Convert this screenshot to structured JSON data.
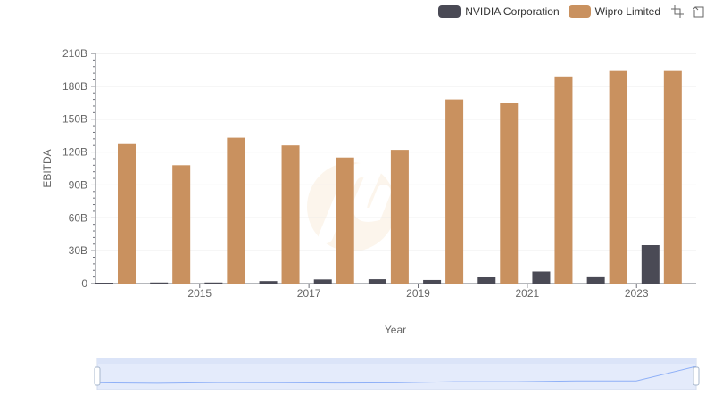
{
  "chart_data": {
    "type": "bar",
    "xlabel": "Year",
    "ylabel": "EBITDA",
    "categories": [
      "2014",
      "2015",
      "2016",
      "2017",
      "2018",
      "2019",
      "2020",
      "2021",
      "2022",
      "2023",
      "2024"
    ],
    "x_tick_labels": [
      "2015",
      "2017",
      "2019",
      "2021",
      "2023"
    ],
    "y_tick_labels": [
      "0",
      "30B",
      "60B",
      "90B",
      "120B",
      "150B",
      "180B",
      "210B"
    ],
    "ylim": [
      0,
      210
    ],
    "y_unit": "B",
    "grid": true,
    "legend_position": "top-right",
    "series": [
      {
        "name": "NVIDIA Corporation",
        "color": "#4a4a55",
        "values": [
          0.8,
          1.0,
          1.0,
          2.3,
          3.8,
          4.0,
          3.3,
          5.7,
          11.0,
          5.8,
          35.0
        ]
      },
      {
        "name": "Wipro Limited",
        "color": "#c9915f",
        "values": [
          128,
          108,
          133,
          126,
          115,
          122,
          168,
          165,
          189,
          194,
          194
        ]
      }
    ]
  },
  "toolbox": {
    "zoom_icon": "zoom-icon",
    "restore_icon": "restore-icon"
  },
  "slider": {
    "fill_color": "#e4ebfb",
    "line_color": "#8fb0f7"
  }
}
